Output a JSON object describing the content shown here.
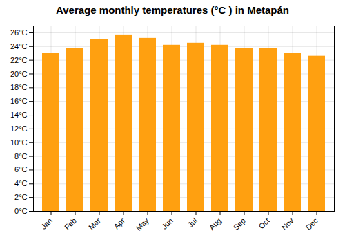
{
  "chart_data": {
    "type": "bar",
    "title": "Average monthly temperatures (°C ) in Metapán",
    "categories": [
      "Jan",
      "Feb",
      "Mar",
      "Apr",
      "May",
      "Jun",
      "Jul",
      "Aug",
      "Sep",
      "Oct",
      "Nov",
      "Dec"
    ],
    "values": [
      23.0,
      23.7,
      25.0,
      25.7,
      25.2,
      24.2,
      24.5,
      24.2,
      23.7,
      23.7,
      23.0,
      22.6
    ],
    "color": "#FFA010",
    "ylim": [
      0,
      27
    ],
    "yticks": [
      {
        "value": 0,
        "label": "0°C"
      },
      {
        "value": 2,
        "label": "2°C"
      },
      {
        "value": 4,
        "label": "4°C"
      },
      {
        "value": 6,
        "label": "6°C"
      },
      {
        "value": 8,
        "label": "8°C"
      },
      {
        "value": 10,
        "label": "10°C"
      },
      {
        "value": 12,
        "label": "12°C"
      },
      {
        "value": 14,
        "label": "14°C"
      },
      {
        "value": 16,
        "label": "16°C"
      },
      {
        "value": 18,
        "label": "18°C"
      },
      {
        "value": 20,
        "label": "20°C"
      },
      {
        "value": 22,
        "label": "22°C"
      },
      {
        "value": 24,
        "label": "24°C"
      },
      {
        "value": 26,
        "label": "26°C"
      }
    ],
    "grid": true
  }
}
